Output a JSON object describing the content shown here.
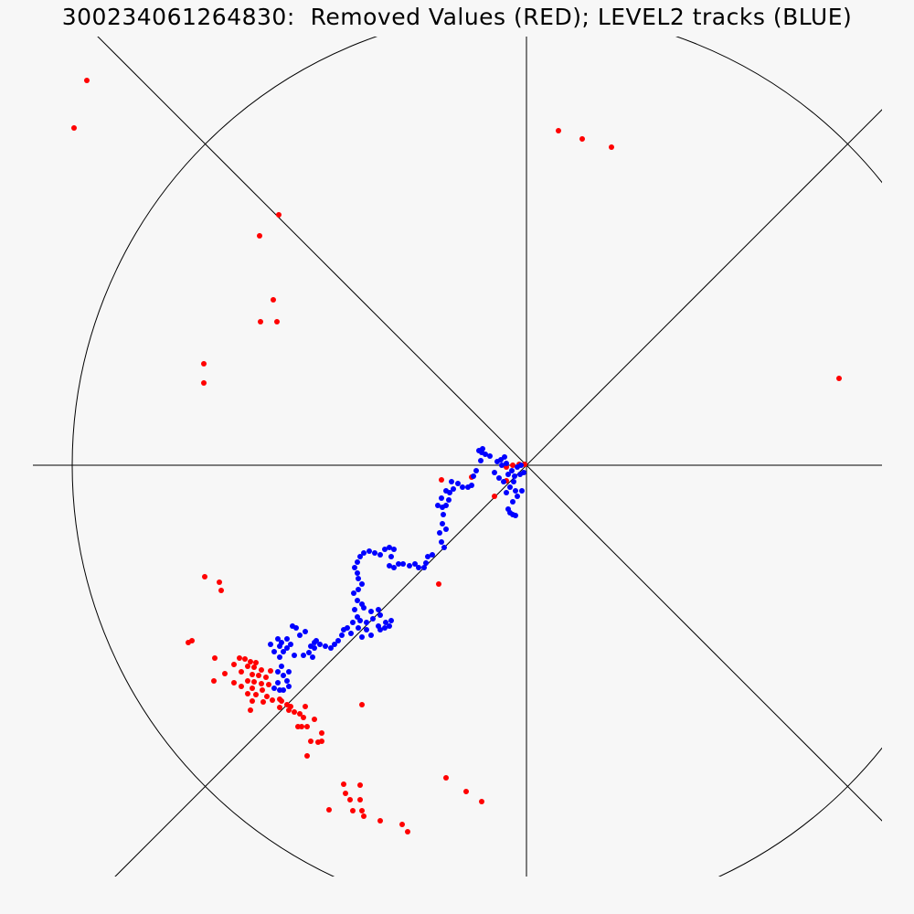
{
  "title": "300234061264830:  Removed Values (RED); LEVEL2 tracks (BLUE)",
  "chart_data": {
    "type": "scatter",
    "title": "300234061264830:  Removed Values (RED); LEVEL2 tracks (BLUE)",
    "xlabel": "",
    "ylabel": "",
    "xlim": [
      -545,
      389
    ],
    "ylim": [
      -450,
      490
    ],
    "grid": false,
    "legend": "none",
    "series": [
      {
        "name": "Removed Values",
        "color": "#ff0000",
        "points": [
          [
            -481,
            421
          ],
          [
            -495,
            369
          ],
          [
            -271,
            274
          ],
          [
            -292,
            251
          ],
          [
            -277,
            181
          ],
          [
            -291,
            157
          ],
          [
            -273,
            157
          ],
          [
            -353,
            111
          ],
          [
            -353,
            90
          ],
          [
            35,
            366
          ],
          [
            61,
            357
          ],
          [
            93,
            348
          ],
          [
            342,
            95
          ],
          [
            -352,
            -122
          ],
          [
            -336,
            -128
          ],
          [
            -334,
            -137
          ],
          [
            -366,
            -192
          ],
          [
            -370,
            -194
          ],
          [
            -341,
            -211
          ],
          [
            -314,
            -211
          ],
          [
            -308,
            -212
          ],
          [
            -302,
            -215
          ],
          [
            -296,
            -216
          ],
          [
            -320,
            -218
          ],
          [
            -305,
            -220
          ],
          [
            -298,
            -221
          ],
          [
            -290,
            -224
          ],
          [
            -280,
            -225
          ],
          [
            -312,
            -226
          ],
          [
            -330,
            -228
          ],
          [
            -300,
            -229
          ],
          [
            -293,
            -230
          ],
          [
            -285,
            -232
          ],
          [
            -342,
            -236
          ],
          [
            -305,
            -236
          ],
          [
            -298,
            -237
          ],
          [
            -320,
            -238
          ],
          [
            -290,
            -239
          ],
          [
            -282,
            -240
          ],
          [
            -312,
            -242
          ],
          [
            -300,
            -244
          ],
          [
            -289,
            -246
          ],
          [
            -305,
            -250
          ],
          [
            -296,
            -251
          ],
          [
            -284,
            -253
          ],
          [
            -270,
            -256
          ],
          [
            -278,
            -257
          ],
          [
            -268,
            -258
          ],
          [
            -300,
            -258
          ],
          [
            -288,
            -259
          ],
          [
            -262,
            -262
          ],
          [
            -258,
            -264
          ],
          [
            -242,
            -264
          ],
          [
            -270,
            -265
          ],
          [
            -180,
            -262
          ],
          [
            -302,
            -268
          ],
          [
            -260,
            -268
          ],
          [
            -254,
            -270
          ],
          [
            -248,
            -272
          ],
          [
            -244,
            -276
          ],
          [
            -232,
            -278
          ],
          [
            -250,
            -286
          ],
          [
            -246,
            -286
          ],
          [
            -240,
            -286
          ],
          [
            -224,
            -293
          ],
          [
            -236,
            -302
          ],
          [
            -224,
            -302
          ],
          [
            -228,
            -303
          ],
          [
            -240,
            -318
          ],
          [
            -200,
            -349
          ],
          [
            -182,
            -350
          ],
          [
            -198,
            -359
          ],
          [
            -193,
            -366
          ],
          [
            -182,
            -366
          ],
          [
            -180,
            -378
          ],
          [
            -216,
            -377
          ],
          [
            -190,
            -378
          ],
          [
            -178,
            -384
          ],
          [
            -160,
            -389
          ],
          [
            -136,
            -393
          ],
          [
            -130,
            -401
          ],
          [
            -88,
            -342
          ],
          [
            -66,
            -357
          ],
          [
            -49,
            -368
          ],
          [
            -93,
            -16
          ],
          [
            -60,
            -13
          ],
          [
            -22,
            -17
          ],
          [
            -22,
            -2
          ],
          [
            -15,
            0
          ],
          [
            -8,
            1
          ],
          [
            -2,
            1
          ],
          [
            -35,
            -34
          ],
          [
            -96,
            -130
          ]
        ]
      },
      {
        "name": "LEVEL2 tracks",
        "color": "#0000ff",
        "points": [
          [
            -6,
            0
          ],
          [
            -10,
            -2
          ],
          [
            -16,
            -6
          ],
          [
            -20,
            -10
          ],
          [
            -13,
            -12
          ],
          [
            -7,
            -10
          ],
          [
            -3,
            -8
          ],
          [
            -14,
            -18
          ],
          [
            -18,
            -24
          ],
          [
            -12,
            -28
          ],
          [
            -5,
            -28
          ],
          [
            -10,
            -34
          ],
          [
            -15,
            -40
          ],
          [
            -20,
            -48
          ],
          [
            -18,
            -52
          ],
          [
            -15,
            -54
          ],
          [
            -12,
            -55
          ],
          [
            -22,
            -30
          ],
          [
            -25,
            -18
          ],
          [
            -30,
            -14
          ],
          [
            -35,
            -8
          ],
          [
            -32,
            4
          ],
          [
            -28,
            6
          ],
          [
            -24,
            9
          ],
          [
            -22,
            2
          ],
          [
            -27,
            0
          ],
          [
            -40,
            10
          ],
          [
            -45,
            12
          ],
          [
            -49,
            14
          ],
          [
            -52,
            16
          ],
          [
            -48,
            18
          ],
          [
            -50,
            5
          ],
          [
            -55,
            -6
          ],
          [
            -58,
            -12
          ],
          [
            -60,
            -22
          ],
          [
            -64,
            -24
          ],
          [
            -70,
            -24
          ],
          [
            -75,
            -20
          ],
          [
            -82,
            -18
          ],
          [
            -80,
            -26
          ],
          [
            -84,
            -30
          ],
          [
            -88,
            -28
          ],
          [
            -85,
            -38
          ],
          [
            -88,
            -44
          ],
          [
            -92,
            -46
          ],
          [
            -91,
            -54
          ],
          [
            -92,
            -64
          ],
          [
            -88,
            -70
          ],
          [
            -95,
            -74
          ],
          [
            -93,
            -84
          ],
          [
            -90,
            -90
          ],
          [
            -97,
            -44
          ],
          [
            -93,
            -36
          ],
          [
            -103,
            -98
          ],
          [
            -108,
            -100
          ],
          [
            -110,
            -107
          ],
          [
            -112,
            -112
          ],
          [
            -118,
            -112
          ],
          [
            -122,
            -108
          ],
          [
            -128,
            -110
          ],
          [
            -135,
            -108
          ],
          [
            -140,
            -108
          ],
          [
            -145,
            -112
          ],
          [
            -150,
            -110
          ],
          [
            -148,
            -100
          ],
          [
            -145,
            -92
          ],
          [
            -150,
            -90
          ],
          [
            -155,
            -92
          ],
          [
            -160,
            -98
          ],
          [
            -166,
            -96
          ],
          [
            -172,
            -94
          ],
          [
            -178,
            -96
          ],
          [
            -182,
            -100
          ],
          [
            -185,
            -106
          ],
          [
            -188,
            -112
          ],
          [
            -185,
            -118
          ],
          [
            -184,
            -124
          ],
          [
            -180,
            -130
          ],
          [
            -184,
            -136
          ],
          [
            -189,
            -140
          ],
          [
            -185,
            -148
          ],
          [
            -180,
            -152
          ],
          [
            -178,
            -156
          ],
          [
            -170,
            -160
          ],
          [
            -162,
            -158
          ],
          [
            -160,
            -164
          ],
          [
            -168,
            -168
          ],
          [
            -175,
            -172
          ],
          [
            -182,
            -170
          ],
          [
            -188,
            -158
          ],
          [
            -185,
            -166
          ],
          [
            -190,
            -172
          ],
          [
            -196,
            -178
          ],
          [
            -192,
            -184
          ],
          [
            -180,
            -188
          ],
          [
            -170,
            -186
          ],
          [
            -160,
            -180
          ],
          [
            -154,
            -172
          ],
          [
            -148,
            -170
          ],
          [
            -150,
            -176
          ],
          [
            -155,
            -178
          ],
          [
            -162,
            -176
          ],
          [
            -175,
            -180
          ],
          [
            -184,
            -178
          ],
          [
            -200,
            -180
          ],
          [
            -202,
            -186
          ],
          [
            -206,
            -192
          ],
          [
            -210,
            -196
          ],
          [
            -214,
            -200
          ],
          [
            -220,
            -198
          ],
          [
            -226,
            -196
          ],
          [
            -232,
            -194
          ],
          [
            -236,
            -198
          ],
          [
            -238,
            -205
          ],
          [
            -234,
            -210
          ],
          [
            -232,
            -200
          ],
          [
            -230,
            -192
          ],
          [
            -242,
            -182
          ],
          [
            -248,
            -186
          ],
          [
            -252,
            -178
          ],
          [
            -256,
            -176
          ],
          [
            -262,
            -190
          ],
          [
            -268,
            -194
          ],
          [
            -272,
            -190
          ],
          [
            -270,
            -198
          ],
          [
            -266,
            -204
          ],
          [
            -270,
            -210
          ],
          [
            -276,
            -204
          ],
          [
            -280,
            -196
          ],
          [
            -258,
            -196
          ],
          [
            -262,
            -200
          ],
          [
            -268,
            -220
          ],
          [
            -272,
            -226
          ],
          [
            -266,
            -230
          ],
          [
            -260,
            -226
          ],
          [
            -262,
            -236
          ],
          [
            -272,
            -238
          ],
          [
            -276,
            -244
          ],
          [
            -270,
            -246
          ],
          [
            -266,
            -246
          ],
          [
            -260,
            -242
          ],
          [
            -254,
            -208
          ],
          [
            -244,
            -208
          ]
        ]
      }
    ]
  }
}
